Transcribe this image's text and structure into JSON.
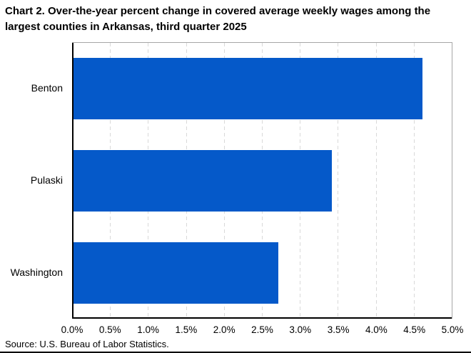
{
  "header": {
    "title": "Chart 2. Over-the-year percent change in covered average weekly wages among the largest counties in Arkansas, third quarter 2025"
  },
  "source_note": "Source: U.S. Bureau of Labor Statistics.",
  "colors": {
    "bar": "#0559C9",
    "gridline": "#D9D9D9",
    "plot_border": "#A6A6A6",
    "axis": "#000000",
    "text": "#000000"
  },
  "chart_data": {
    "type": "bar",
    "orientation": "horizontal",
    "title": "Chart 2. Over-the-year percent change in covered average weekly wages among the largest counties in Arkansas, third quarter 2025",
    "categories": [
      "Benton",
      "Pulaski",
      "Washington"
    ],
    "values": [
      4.6,
      3.4,
      2.7
    ],
    "value_unit": "percent",
    "xlabel": "",
    "ylabel": "",
    "xlim": [
      0,
      5.0
    ],
    "xtick_values": [
      0,
      0.5,
      1.0,
      1.5,
      2.0,
      2.5,
      3.0,
      3.5,
      4.0,
      4.5,
      5.0
    ],
    "xtick_labels": [
      "0.0%",
      "0.5%",
      "1.0%",
      "1.5%",
      "2.0%",
      "2.5%",
      "3.0%",
      "3.5%",
      "4.0%",
      "4.5%",
      "5.0%"
    ],
    "grid": "vertical-dashed",
    "legend": "none",
    "data_labels": "none"
  }
}
